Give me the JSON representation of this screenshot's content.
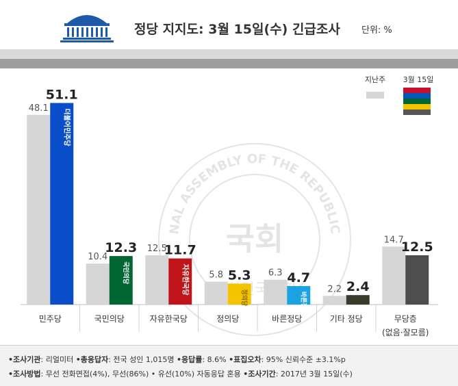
{
  "header": {
    "title": "정당 지지도: 3월 15일(수) 긴급조사",
    "unit": "단위: %",
    "logo_icon": "national-assembly-building-icon"
  },
  "colors": {
    "previous": "#d6d6d6",
    "band_light": "#d9d9d9",
    "band_dark": "#9e9e9e",
    "axis": "#bfbfbf"
  },
  "watermark": {
    "ring_text": "THE NATIONAL ASSEMBLY OF THE REPUBLIC OF KOREA",
    "center_text": "국회",
    "bottom_text": "대한민국국회"
  },
  "chart_data": {
    "type": "bar",
    "title": "정당 지지도: 3월 15일(수) 긴급조사",
    "ylabel": "",
    "ylim": [
      0,
      55
    ],
    "grid": false,
    "legend_position": "top-right",
    "legend_swatch_colors": [
      "#c8102e",
      "#0057b8",
      "#006633",
      "#f5c400",
      "#555555"
    ],
    "categories": [
      "민주당",
      "국민의당",
      "자유한국당",
      "정의당",
      "바른정당",
      "기타 정당",
      "무당층"
    ],
    "category_sublabels": [
      "",
      "",
      "",
      "",
      "",
      "",
      "(없음·잘모름)"
    ],
    "series": [
      {
        "name": "지난주",
        "values": [
          48.1,
          10.4,
          12.5,
          5.8,
          6.3,
          2.2,
          14.7
        ],
        "color": "#d6d6d6"
      },
      {
        "name": "3월 15일",
        "values": [
          51.1,
          12.3,
          11.7,
          5.3,
          4.7,
          2.4,
          12.5
        ],
        "colors": [
          "#0a4dc8",
          "#006633",
          "#c0141b",
          "#f5c400",
          "#1aa3e0",
          "#3a3a2a",
          "#4d4d4d"
        ]
      }
    ],
    "bar_logos": [
      "더불어민주당",
      "국민의당",
      "자유한국당",
      "정의당",
      "바른정당",
      "",
      ""
    ]
  },
  "footer": {
    "line1": [
      {
        "label": "•조사기관",
        "value": ": 리얼미터 "
      },
      {
        "label": "•총응답자",
        "value": ": 전국 성인 1,015명 "
      },
      {
        "label": "•응답률",
        "value": ": 8.6% "
      },
      {
        "label": "•표집오차",
        "value": ": 95% 신뢰수준 ±3.1%p"
      }
    ],
    "line2": [
      {
        "label": "•조사방법",
        "value": ": 무선 전화면접(4%), 무선(86%) • 유선(10%) 자동응답 혼용 "
      },
      {
        "label": "•조사기간",
        "value": ": 2017년 3월 15일(수)"
      }
    ]
  }
}
